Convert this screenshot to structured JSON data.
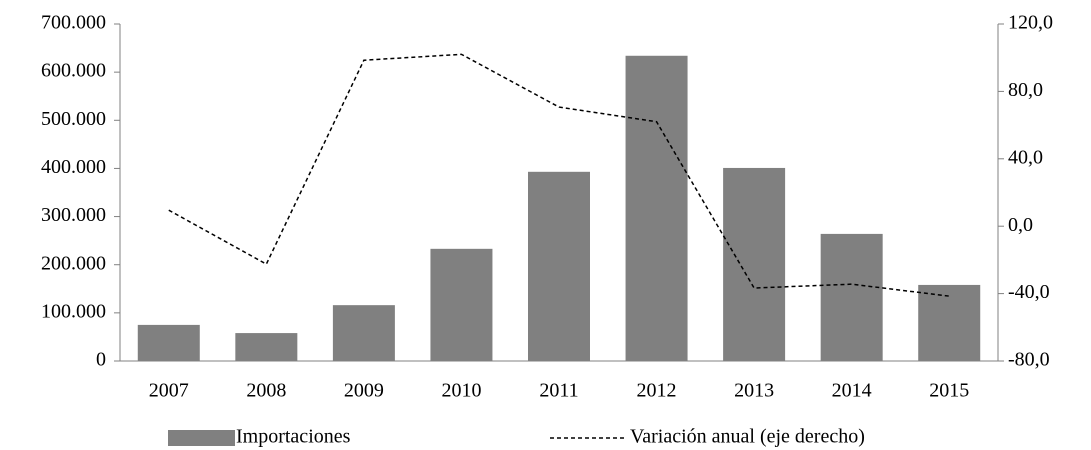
{
  "chart_data": {
    "type": "bar-line",
    "categories": [
      "2007",
      "2008",
      "2009",
      "2010",
      "2011",
      "2012",
      "2013",
      "2014",
      "2015"
    ],
    "series": [
      {
        "name": "Importaciones",
        "type": "bar",
        "color": "#808080",
        "values": [
          75000,
          58000,
          116000,
          233000,
          393000,
          634000,
          401000,
          264000,
          158000
        ]
      },
      {
        "name": "Variación anual (eje derecho)",
        "type": "line",
        "axis": "y2",
        "color": "#000000",
        "dashed": true,
        "values": [
          9.5,
          -22.5,
          98.5,
          102,
          70.7,
          62,
          -36.7,
          -34.4,
          -41.5
        ]
      }
    ],
    "ylim": [
      0,
      700000
    ],
    "yticks": [
      0,
      {
        "value": 100000,
        "label": "100.000"
      },
      {
        "value": 200000,
        "label": "200.000"
      },
      {
        "value": 300000,
        "label": "300.000"
      },
      {
        "value": 400000,
        "label": "400.000"
      },
      {
        "value": 500000,
        "label": "500.000"
      },
      {
        "value": 600000,
        "label": "600.000"
      },
      {
        "value": 700000,
        "label": "700.000"
      }
    ],
    "y2lim": [
      -80,
      120
    ],
    "y2ticks": [
      {
        "value": -80,
        "label": "-80,0"
      },
      {
        "value": -40,
        "label": "-40,0"
      },
      {
        "value": 0,
        "label": "0,0"
      },
      {
        "value": 40,
        "label": "40,0"
      },
      {
        "value": 80,
        "label": "80,0"
      },
      {
        "value": 120,
        "label": "120,0"
      }
    ],
    "grid": false,
    "legend": "bottom"
  }
}
